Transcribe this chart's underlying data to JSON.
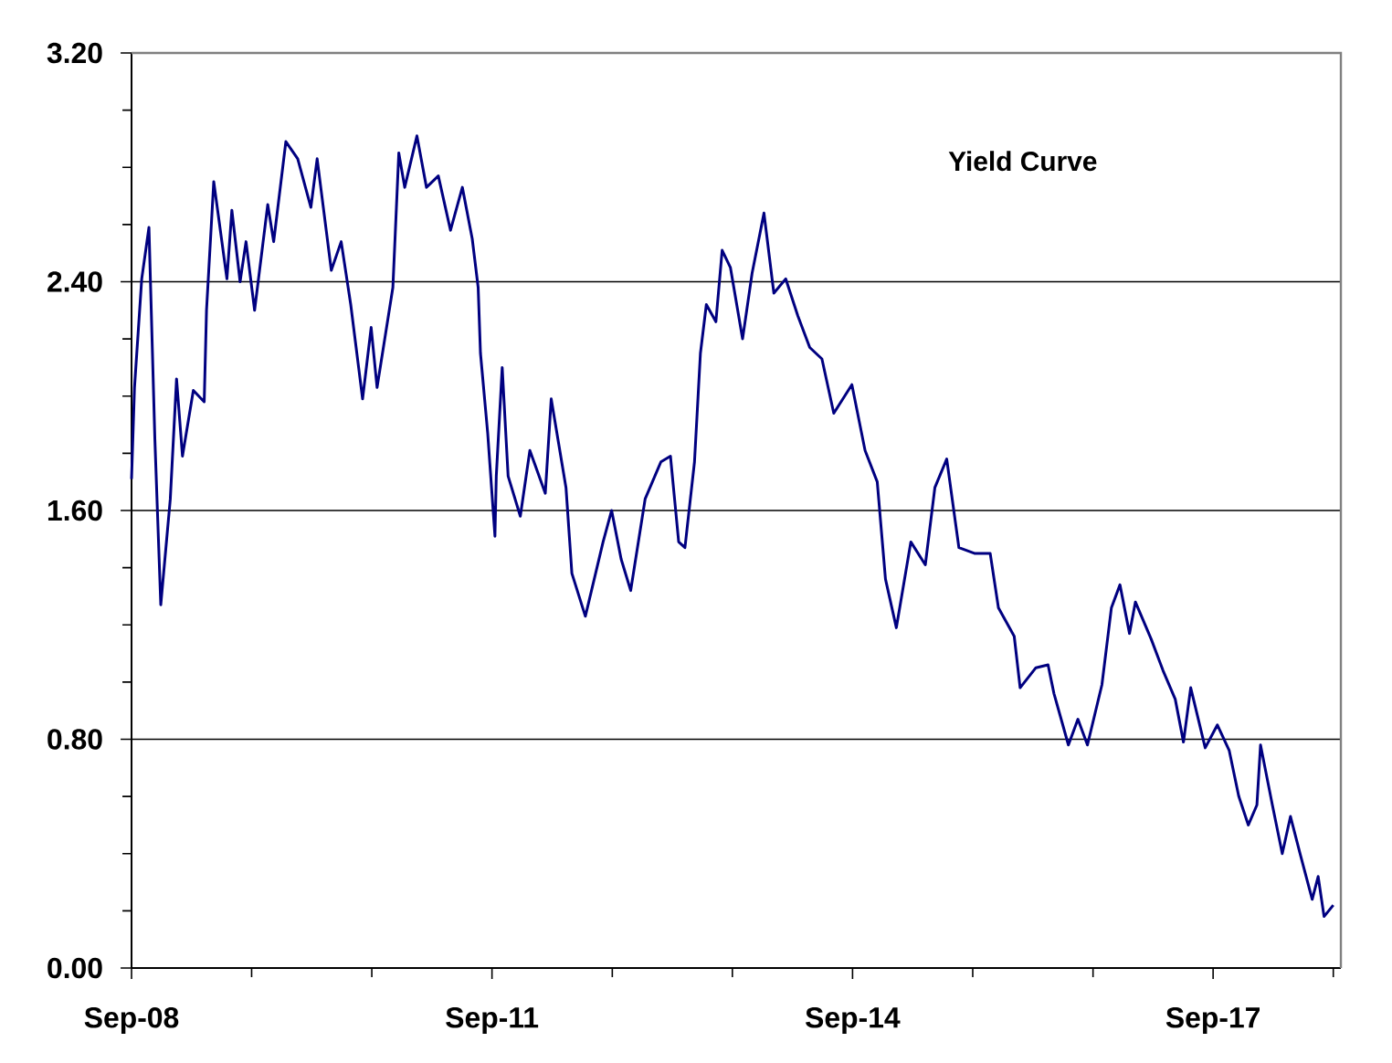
{
  "chart_data": {
    "type": "line",
    "title": "Yield Curve",
    "x": [
      "2008-09-01",
      "2008-09-10",
      "2008-10-02",
      "2008-10-24",
      "2008-11-11",
      "2008-11-29",
      "2008-12-28",
      "2009-01-16",
      "2009-02-03",
      "2009-03-08",
      "2009-04-10",
      "2009-04-17",
      "2009-05-09",
      "2009-06-18",
      "2009-07-03",
      "2009-07-28",
      "2009-08-15",
      "2009-09-10",
      "2009-10-20",
      "2009-11-07",
      "2009-12-14",
      "2010-01-19",
      "2010-02-28",
      "2010-03-19",
      "2010-05-01",
      "2010-05-31",
      "2010-06-29",
      "2010-08-04",
      "2010-08-30",
      "2010-09-17",
      "2010-11-04",
      "2010-11-22",
      "2010-12-10",
      "2011-01-16",
      "2011-02-14",
      "2011-03-22",
      "2011-04-28",
      "2011-06-03",
      "2011-07-03",
      "2011-07-21",
      "2011-07-28",
      "2011-08-19",
      "2011-09-10",
      "2011-09-14",
      "2011-10-02",
      "2011-10-20",
      "2011-11-26",
      "2011-12-25",
      "2012-02-10",
      "2012-02-28",
      "2012-04-13",
      "2012-05-01",
      "2012-06-11",
      "2012-08-04",
      "2012-08-30",
      "2012-09-28",
      "2012-10-27",
      "2012-12-10",
      "2013-01-27",
      "2013-02-25",
      "2013-03-22",
      "2013-04-10",
      "2013-05-09",
      "2013-05-27",
      "2013-06-14",
      "2013-07-13",
      "2013-08-01",
      "2013-08-26",
      "2013-10-02",
      "2013-10-31",
      "2013-12-06",
      "2014-01-05",
      "2014-02-10",
      "2014-03-19",
      "2014-04-24",
      "2014-05-31",
      "2014-07-06",
      "2014-08-30",
      "2014-10-09",
      "2014-11-15",
      "2014-12-10",
      "2015-01-12",
      "2015-02-25",
      "2015-04-10",
      "2015-05-09",
      "2015-06-14",
      "2015-07-21",
      "2015-09-06",
      "2015-10-24",
      "2015-11-18",
      "2016-01-05",
      "2016-01-23",
      "2016-03-11",
      "2016-04-17",
      "2016-05-05",
      "2016-06-18",
      "2016-07-17",
      "2016-08-15",
      "2016-09-28",
      "2016-10-27",
      "2016-11-22",
      "2016-12-21",
      "2017-01-08",
      "2017-02-25",
      "2017-04-02",
      "2017-05-09",
      "2017-06-03",
      "2017-06-25",
      "2017-08-08",
      "2017-09-14",
      "2017-10-20",
      "2017-11-18",
      "2017-12-17",
      "2018-01-12",
      "2018-01-23",
      "2018-02-28",
      "2018-03-30",
      "2018-04-24",
      "2018-05-23",
      "2018-06-29",
      "2018-07-17",
      "2018-08-04",
      "2018-09-01"
    ],
    "series": [
      {
        "color": "#000080",
        "values": [
          1.71,
          2.03,
          2.41,
          2.59,
          1.85,
          1.27,
          1.64,
          2.06,
          1.79,
          2.02,
          1.98,
          2.3,
          2.75,
          2.41,
          2.65,
          2.4,
          2.54,
          2.3,
          2.67,
          2.54,
          2.89,
          2.83,
          2.66,
          2.83,
          2.44,
          2.54,
          2.32,
          1.99,
          2.24,
          2.03,
          2.38,
          2.85,
          2.73,
          2.91,
          2.73,
          2.77,
          2.58,
          2.73,
          2.55,
          2.38,
          2.15,
          1.87,
          1.51,
          1.72,
          2.1,
          1.72,
          1.58,
          1.81,
          1.66,
          1.99,
          1.68,
          1.38,
          1.23,
          1.49,
          1.6,
          1.43,
          1.32,
          1.64,
          1.77,
          1.79,
          1.49,
          1.47,
          1.77,
          2.15,
          2.32,
          2.26,
          2.51,
          2.45,
          2.2,
          2.43,
          2.64,
          2.36,
          2.41,
          2.28,
          2.17,
          2.13,
          1.94,
          2.04,
          1.81,
          1.7,
          1.36,
          1.19,
          1.49,
          1.41,
          1.68,
          1.78,
          1.47,
          1.45,
          1.45,
          1.26,
          1.16,
          0.98,
          1.05,
          1.06,
          0.96,
          0.78,
          0.87,
          0.78,
          0.99,
          1.26,
          1.34,
          1.17,
          1.28,
          1.15,
          1.04,
          0.94,
          0.79,
          0.98,
          0.77,
          0.85,
          0.76,
          0.6,
          0.5,
          0.57,
          0.78,
          0.57,
          0.4,
          0.53,
          0.4,
          0.24,
          0.32,
          0.18,
          0.22
        ]
      }
    ],
    "xlim": [
      "2008-09-01",
      "2018-09-24"
    ],
    "xticks": [
      {
        "value": "2008-09-01",
        "label": "Sep-08"
      },
      {
        "value": "2009-09-01",
        "label": null
      },
      {
        "value": "2010-09-01",
        "label": null
      },
      {
        "value": "2011-09-01",
        "label": "Sep-11"
      },
      {
        "value": "2012-09-01",
        "label": null
      },
      {
        "value": "2013-09-01",
        "label": null
      },
      {
        "value": "2014-09-01",
        "label": "Sep-14"
      },
      {
        "value": "2015-09-01",
        "label": null
      },
      {
        "value": "2016-09-01",
        "label": null
      },
      {
        "value": "2017-09-01",
        "label": "Sep-17"
      },
      {
        "value": "2018-09-01",
        "label": null
      }
    ],
    "ylim": [
      0,
      3.2
    ],
    "yticks": [
      {
        "value": 0,
        "label": "0.00"
      },
      {
        "value": 0.2,
        "label": null
      },
      {
        "value": 0.4,
        "label": null
      },
      {
        "value": 0.6,
        "label": null
      },
      {
        "value": 0.8,
        "label": "0.80"
      },
      {
        "value": 1.0,
        "label": null
      },
      {
        "value": 1.2,
        "label": null
      },
      {
        "value": 1.4,
        "label": null
      },
      {
        "value": 1.6,
        "label": "1.60"
      },
      {
        "value": 1.8,
        "label": null
      },
      {
        "value": 2.0,
        "label": null
      },
      {
        "value": 2.2,
        "label": null
      },
      {
        "value": 2.4,
        "label": "2.40"
      },
      {
        "value": 2.6,
        "label": null
      },
      {
        "value": 2.8,
        "label": null
      },
      {
        "value": 3.0,
        "label": null
      },
      {
        "value": 3.2,
        "label": "3.20"
      }
    ],
    "grid": "y"
  }
}
